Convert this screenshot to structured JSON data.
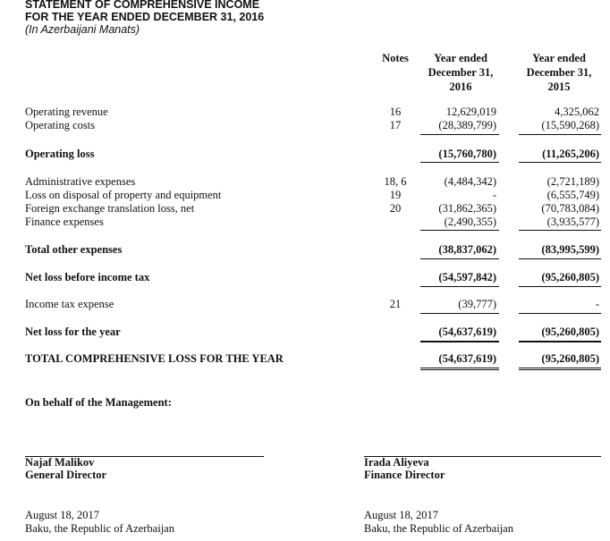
{
  "header": {
    "title": "STATEMENT OF COMPREHENSIVE INCOME",
    "subtitle": "FOR THE YEAR ENDED DECEMBER 31, 2016",
    "currency": "(In Azerbaijani Manats)"
  },
  "columns": {
    "notes": "Notes",
    "y2016": [
      "Year ended",
      "December 31,",
      "2016"
    ],
    "y2015": [
      "Year ended",
      "December 31,",
      "2015"
    ]
  },
  "rows": [
    {
      "label": "Operating revenue",
      "note": "16",
      "v2016": "12,629,019",
      "v2015": "4,325,062"
    },
    {
      "label": "Operating costs",
      "note": "17",
      "v2016": "(28,389,799)",
      "v2015": "(15,590,268)"
    },
    {
      "label": "Operating loss",
      "note": "",
      "v2016": "(15,760,780)",
      "v2015": "(11,265,206)"
    },
    {
      "label": "Administrative expenses",
      "note": "18, 6",
      "v2016": "(4,484,342)",
      "v2015": "(2,721,189)"
    },
    {
      "label": "Loss on disposal of property and equipment",
      "note": "19",
      "v2016": "-",
      "v2015": "(6,555,749)"
    },
    {
      "label": "Foreign exchange translation loss, net",
      "note": "20",
      "v2016": "(31,862,365)",
      "v2015": "(70,783,084)"
    },
    {
      "label": "Finance expenses",
      "note": "",
      "v2016": "(2,490,355)",
      "v2015": "(3,935,577)"
    },
    {
      "label": "Total other expenses",
      "note": "",
      "v2016": "(38,837,062)",
      "v2015": "(83,995,599)"
    },
    {
      "label": "Net loss before income tax",
      "note": "",
      "v2016": "(54,597,842)",
      "v2015": "(95,260,805)"
    },
    {
      "label": "Income tax expense",
      "note": "21",
      "v2016": "(39,777)",
      "v2015": "-"
    },
    {
      "label": "Net loss for the year",
      "note": "",
      "v2016": "(54,637,619)",
      "v2015": "(95,260,805)"
    },
    {
      "label": "TOTAL COMPREHENSIVE LOSS FOR THE YEAR",
      "note": "",
      "v2016": "(54,637,619)",
      "v2015": "(95,260,805)"
    }
  ],
  "signatures": {
    "intro": "On behalf of the Management:",
    "left": {
      "name": "Najaf Malikov",
      "title": "General Director",
      "date": "August 18, 2017",
      "place": "Baku, the Republic of Azerbaijan"
    },
    "right": {
      "name": "Irada Aliyeva",
      "title": "Finance Director",
      "date": "August 18, 2017",
      "place": "Baku, the Republic of Azerbaijan"
    }
  }
}
